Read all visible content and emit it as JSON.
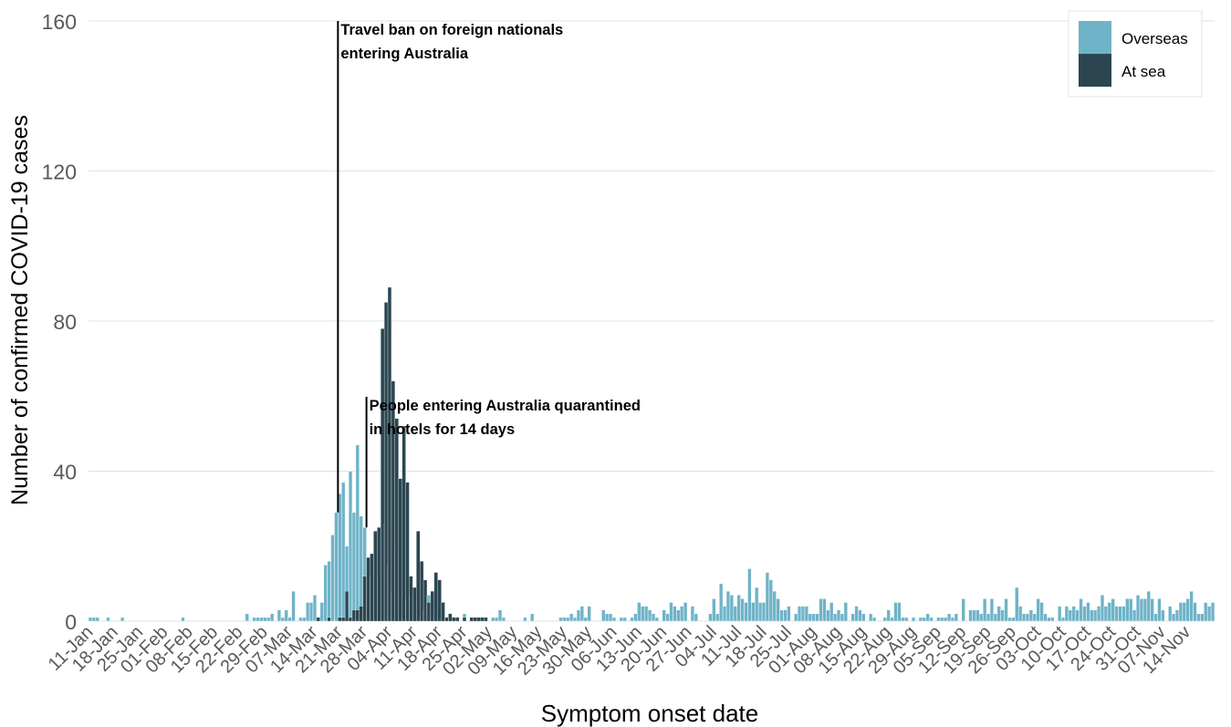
{
  "chart_data": {
    "type": "bar",
    "stacked": true,
    "title": "",
    "xlabel": "Symptom onset date",
    "ylabel": "Number of confirmed COVID-19 cases",
    "ylim": [
      0,
      160
    ],
    "yticks": [
      0,
      40,
      80,
      120,
      160
    ],
    "grid": "horizontal",
    "legend_position": "top-right",
    "x_tick_labels": [
      "11-Jan",
      "18-Jan",
      "25-Jan",
      "01-Feb",
      "08-Feb",
      "15-Feb",
      "22-Feb",
      "29-Feb",
      "07-Mar",
      "14-Mar",
      "21-Mar",
      "28-Mar",
      "04-Apr",
      "11-Apr",
      "18-Apr",
      "25-Apr",
      "02-May",
      "09-May",
      "16-May",
      "23-May",
      "30-May",
      "06-Jun",
      "13-Jun",
      "20-Jun",
      "27-Jun",
      "04-Jul",
      "11-Jul",
      "18-Jul",
      "25-Jul",
      "01-Aug",
      "08-Aug",
      "15-Aug",
      "22-Aug",
      "29-Aug",
      "05-Sep",
      "12-Sep",
      "19-Sep",
      "26-Sep",
      "03-Oct",
      "10-Oct",
      "17-Oct",
      "24-Oct",
      "31-Oct",
      "07-Nov",
      "14-Nov"
    ],
    "x_start_date": "2020-01-11",
    "series": [
      {
        "name": "Overseas",
        "color": "#6fb3c8",
        "values": [
          1,
          1,
          1,
          0,
          0,
          1,
          0,
          0,
          0,
          1,
          0,
          0,
          0,
          0,
          0,
          0,
          0,
          0,
          0,
          0,
          0,
          0,
          0,
          0,
          0,
          0,
          1,
          0,
          0,
          0,
          0,
          0,
          0,
          0,
          0,
          0,
          0,
          0,
          0,
          0,
          0,
          0,
          0,
          0,
          2,
          0,
          1,
          1,
          1,
          1,
          1,
          2,
          0,
          3,
          1,
          3,
          1,
          8,
          0,
          1,
          1,
          5,
          5,
          7,
          1,
          5,
          15,
          16,
          23,
          29,
          34,
          37,
          20,
          40,
          29,
          47,
          28,
          25,
          12,
          12,
          22,
          12,
          31,
          26,
          15,
          8,
          20,
          7,
          1,
          6,
          7,
          5,
          6,
          1,
          3,
          7,
          2,
          3,
          0,
          0,
          1,
          1,
          0,
          0,
          0,
          2,
          0,
          0,
          0,
          0,
          0,
          0,
          0,
          1,
          1,
          3,
          1,
          0,
          0,
          0,
          0,
          0,
          1,
          0,
          2,
          0,
          0,
          0,
          0,
          0,
          0,
          0,
          1,
          1,
          1,
          2,
          1,
          3,
          4,
          1,
          4,
          0,
          0,
          0,
          3,
          2,
          2,
          1,
          0,
          1,
          1,
          0,
          1,
          2,
          5,
          4,
          4,
          3,
          2,
          1,
          0,
          3,
          2,
          5,
          4,
          3,
          4,
          5,
          0,
          4,
          2,
          0,
          0,
          0,
          2,
          6,
          2,
          10,
          4,
          8,
          7,
          4,
          7,
          6,
          5,
          14,
          5,
          9,
          5,
          5,
          13,
          11,
          8,
          6,
          3,
          3,
          4,
          0,
          2,
          4,
          4,
          4,
          2,
          2,
          2,
          6,
          6,
          3,
          5,
          2,
          3,
          2,
          5,
          0,
          2,
          4,
          3,
          2,
          0,
          2,
          1,
          0,
          0,
          1,
          3,
          1,
          5,
          5,
          1,
          1,
          0,
          1,
          0,
          1,
          1,
          2,
          1,
          0,
          1,
          1,
          1,
          2,
          1,
          2,
          0,
          6,
          0,
          3,
          3,
          3,
          2,
          6,
          2,
          6,
          2,
          4,
          3,
          6,
          1,
          1,
          9,
          4,
          2,
          2,
          3,
          2,
          6,
          5,
          2,
          1,
          1,
          0,
          4,
          1,
          4,
          3,
          4,
          3,
          6,
          4,
          5,
          3,
          3,
          4,
          7,
          4,
          5,
          6,
          4,
          4,
          4,
          6,
          6,
          3,
          7,
          6,
          6,
          8,
          6,
          2,
          6,
          3,
          0,
          4,
          2,
          3,
          5,
          5,
          6,
          8,
          5,
          2,
          2,
          5,
          4,
          5
        ]
      },
      {
        "name": "At sea",
        "color": "#2b4651",
        "values": [
          0,
          0,
          0,
          0,
          0,
          0,
          0,
          0,
          0,
          0,
          0,
          0,
          0,
          0,
          0,
          0,
          0,
          0,
          0,
          0,
          0,
          0,
          0,
          0,
          0,
          0,
          0,
          0,
          0,
          0,
          0,
          0,
          0,
          0,
          0,
          0,
          0,
          0,
          0,
          0,
          0,
          0,
          0,
          0,
          0,
          0,
          0,
          0,
          0,
          0,
          0,
          0,
          0,
          0,
          0,
          0,
          0,
          0,
          0,
          0,
          0,
          0,
          0,
          0,
          1,
          0,
          0,
          1,
          0,
          0,
          1,
          1,
          8,
          1,
          3,
          3,
          4,
          12,
          17,
          18,
          24,
          25,
          78,
          85,
          89,
          64,
          54,
          38,
          52,
          37,
          12,
          9,
          24,
          16,
          11,
          5,
          8,
          13,
          11,
          5,
          1,
          2,
          1,
          1,
          0,
          1,
          0,
          1,
          1,
          1,
          1,
          1,
          0,
          0,
          0,
          0,
          0,
          0,
          0,
          0,
          0,
          0,
          0,
          0,
          0,
          0,
          0,
          0,
          0,
          0,
          0,
          0,
          0,
          0,
          0,
          0,
          0,
          0,
          0,
          0,
          0,
          0,
          0,
          0,
          0,
          0,
          0,
          0,
          0,
          0,
          0,
          0,
          0,
          0,
          0,
          0,
          0,
          0,
          0,
          0,
          0,
          0,
          0,
          0,
          0,
          0,
          0,
          0,
          0,
          0,
          0,
          0,
          0,
          0,
          0,
          0,
          0,
          0,
          0,
          0,
          0,
          0,
          0,
          0,
          0,
          0,
          0,
          0,
          0,
          0,
          0,
          0,
          0,
          0,
          0,
          0,
          0,
          0,
          0,
          0,
          0,
          0,
          0,
          0,
          0,
          0,
          0,
          0,
          0,
          0,
          0,
          0,
          0,
          0,
          0,
          0,
          0,
          0,
          0,
          0,
          0,
          0,
          0,
          0,
          0,
          0,
          0,
          0,
          0,
          0,
          0,
          0,
          0,
          0,
          0,
          0,
          0,
          0,
          0,
          0,
          0,
          0,
          0,
          0,
          0,
          0,
          0,
          0,
          0,
          0,
          0,
          0,
          0,
          0,
          0,
          0,
          0,
          0,
          0,
          0,
          0,
          0,
          0,
          0,
          0,
          0,
          0,
          0,
          0,
          0,
          0,
          0,
          0,
          0,
          0,
          0,
          0,
          0,
          0,
          0,
          0,
          0,
          0,
          0,
          0,
          0,
          0,
          0,
          0,
          0,
          0,
          0,
          0,
          0,
          0,
          0,
          0,
          0,
          0,
          0,
          0,
          0,
          0,
          0,
          0,
          0,
          0,
          0,
          0,
          0,
          0,
          0,
          0,
          0,
          0,
          0,
          0,
          0,
          0,
          0,
          0,
          0,
          0,
          0,
          0,
          0,
          0,
          0,
          0,
          0,
          0,
          0,
          0,
          0,
          0,
          0,
          0,
          0,
          0,
          0,
          0,
          0,
          0,
          0,
          0,
          0,
          0,
          0,
          0,
          0
        ]
      }
    ],
    "annotations": [
      {
        "date": "2020-03-20",
        "lines": [
          "Travel ban on foreign nationals",
          "entering Australia"
        ]
      },
      {
        "date": "2020-03-28",
        "lines": [
          "People entering Australia quarantined",
          "in hotels for 14 days"
        ]
      }
    ]
  }
}
